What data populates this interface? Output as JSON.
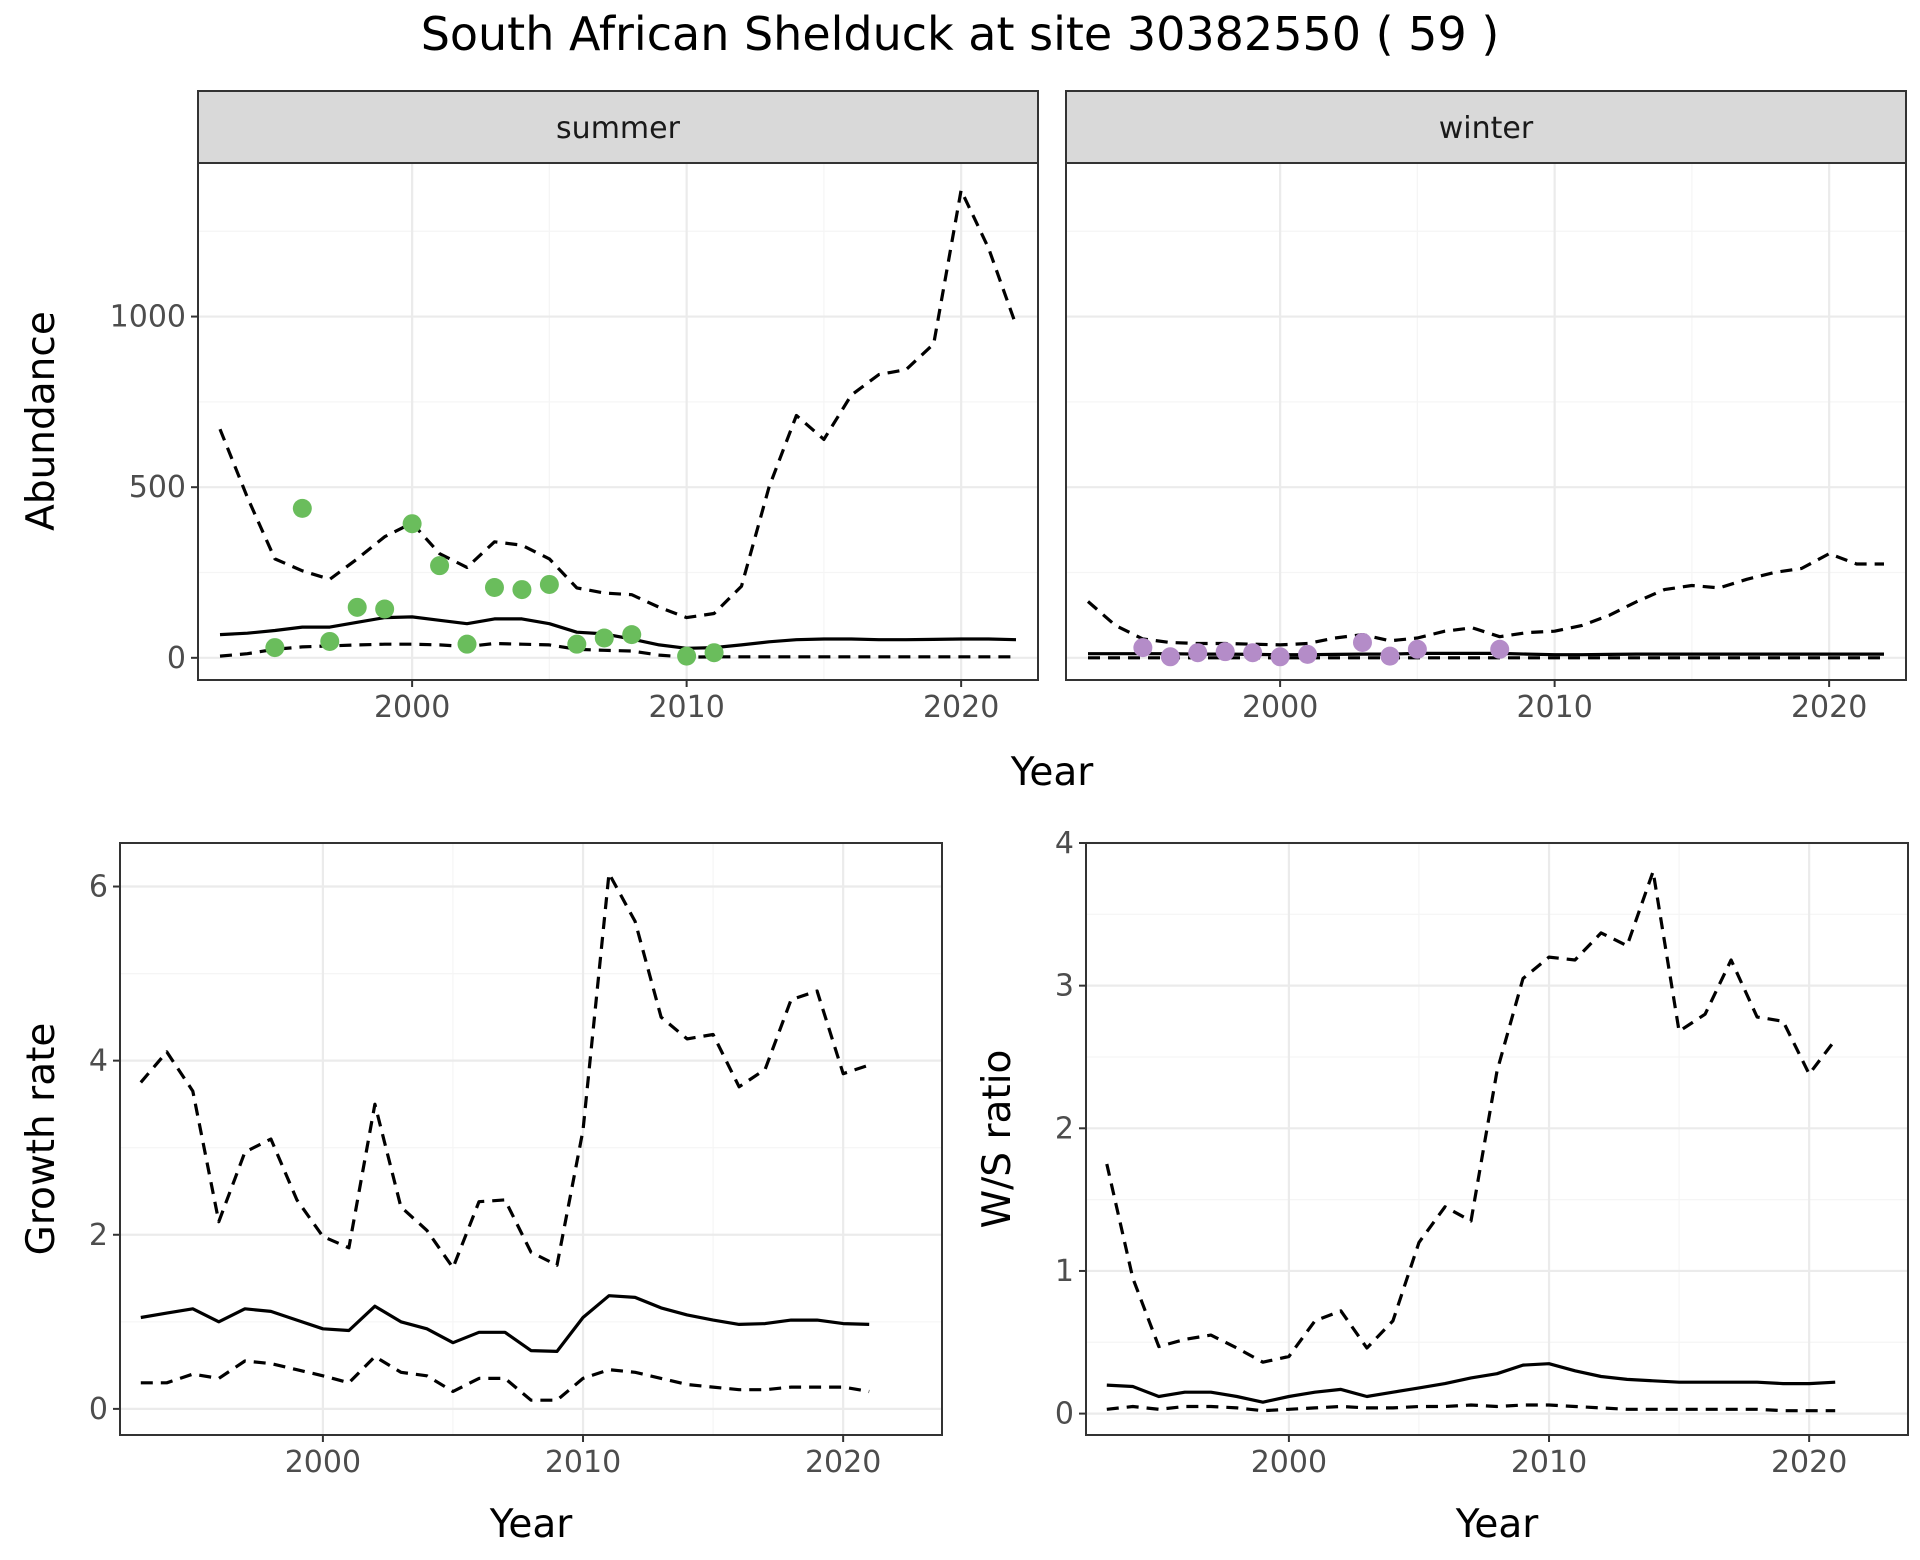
{
  "title": "South African Shelduck at site 30382550 ( 59 )",
  "colors": {
    "summer_points": "#6abd5c",
    "winter_points": "#b48cc8",
    "line": "#000000",
    "grid_major": "#ebebeb",
    "grid_minor": "#f5f5f5",
    "strip_fill": "#d9d9d9",
    "strip_border": "#333333",
    "panel_border": "#333333"
  },
  "chart_data": [
    {
      "name": "abundance",
      "type": "line",
      "ylabel": "Abundance",
      "xlabel": "Year",
      "xlim": [
        1992.2,
        2022.8
      ],
      "ylim": [
        -65,
        1450
      ],
      "x_ticks": [
        2000,
        2010,
        2020
      ],
      "y_ticks": [
        0,
        500,
        1000
      ],
      "grid": true,
      "legend": "none",
      "facets": [
        {
          "label": "summer",
          "fit": {
            "x": [
              1993,
              1994,
              1995,
              1996,
              1997,
              1998,
              1999,
              2000,
              2001,
              2002,
              2003,
              2004,
              2005,
              2006,
              2007,
              2008,
              2009,
              2010,
              2011,
              2012,
              2013,
              2014,
              2015,
              2016,
              2017,
              2018,
              2019,
              2020,
              2021,
              2022
            ],
            "mean": [
              68,
              72,
              80,
              90,
              90,
              104,
              118,
              120,
              110,
              100,
              114,
              114,
              100,
              75,
              70,
              55,
              38,
              28,
              30,
              38,
              47,
              53,
              55,
              55,
              53,
              53,
              54,
              55,
              55,
              53
            ],
            "lower": [
              5,
              12,
              25,
              32,
              35,
              38,
              40,
              40,
              38,
              33,
              42,
              40,
              38,
              25,
              22,
              20,
              8,
              2,
              3,
              3,
              3,
              3,
              3,
              3,
              3,
              3,
              3,
              3,
              3,
              3
            ],
            "upper": [
              670,
              470,
              290,
              255,
              230,
              290,
              355,
              395,
              305,
              265,
              340,
              330,
              290,
              205,
              190,
              185,
              148,
              118,
              130,
              210,
              500,
              710,
              640,
              770,
              830,
              845,
              920,
              1370,
              1200,
              975
            ]
          },
          "observed": {
            "x": [
              1995,
              1996,
              1997,
              1998,
              1999,
              2000,
              2001,
              2002,
              2003,
              2004,
              2005,
              2006,
              2007,
              2008,
              2010,
              2011
            ],
            "y": [
              30,
              438,
              48,
              148,
              143,
              393,
              270,
              40,
              206,
              200,
              215,
              40,
              58,
              68,
              5,
              15
            ]
          }
        },
        {
          "label": "winter",
          "fit": {
            "x": [
              1993,
              1994,
              1995,
              1996,
              1997,
              1998,
              1999,
              2000,
              2001,
              2002,
              2003,
              2004,
              2005,
              2006,
              2007,
              2008,
              2009,
              2010,
              2011,
              2012,
              2013,
              2014,
              2015,
              2016,
              2017,
              2018,
              2019,
              2020,
              2021,
              2022
            ],
            "mean": [
              12,
              12,
              12,
              12,
              11,
              11,
              10,
              9,
              9,
              10,
              11,
              11,
              13,
              13,
              13,
              13,
              11,
              9,
              9,
              10,
              11,
              11,
              11,
              11,
              11,
              11,
              11,
              11,
              11,
              11
            ],
            "lower": [
              0,
              0,
              0,
              0,
              0,
              0,
              0,
              0,
              0,
              0,
              0,
              0,
              0,
              0,
              0,
              0,
              0,
              0,
              0,
              0,
              0,
              0,
              0,
              0,
              0,
              0,
              0,
              0,
              0,
              0
            ],
            "upper": [
              165,
              95,
              55,
              45,
              42,
              42,
              40,
              38,
              42,
              58,
              68,
              50,
              58,
              78,
              88,
              62,
              74,
              78,
              95,
              125,
              165,
              200,
              212,
              205,
              230,
              250,
              262,
              305,
              275,
              275
            ]
          },
          "observed": {
            "x": [
              1995,
              1996,
              1997,
              1998,
              1999,
              2000,
              2001,
              2003,
              2004,
              2005,
              2008
            ],
            "y": [
              30,
              3,
              15,
              18,
              15,
              3,
              10,
              45,
              5,
              25,
              25
            ]
          }
        }
      ]
    },
    {
      "name": "growth-rate",
      "type": "line",
      "ylabel": "Growth rate",
      "xlabel": "Year",
      "xlim": [
        1992.2,
        2023.8
      ],
      "ylim": [
        -0.3,
        6.5
      ],
      "x_ticks": [
        2000,
        2010,
        2020
      ],
      "y_ticks": [
        0,
        2,
        4,
        6
      ],
      "grid": true,
      "legend": "none",
      "series": {
        "x": [
          1993,
          1994,
          1995,
          1996,
          1997,
          1998,
          1999,
          2000,
          2001,
          2002,
          2003,
          2004,
          2005,
          2006,
          2007,
          2008,
          2009,
          2010,
          2011,
          2012,
          2013,
          2014,
          2015,
          2016,
          2017,
          2018,
          2019,
          2020,
          2021
        ],
        "mean": [
          1.05,
          1.1,
          1.15,
          1.0,
          1.15,
          1.12,
          1.02,
          0.92,
          0.9,
          1.18,
          1.0,
          0.92,
          0.76,
          0.88,
          0.88,
          0.67,
          0.66,
          1.05,
          1.3,
          1.28,
          1.16,
          1.08,
          1.02,
          0.97,
          0.98,
          1.02,
          1.02,
          0.98,
          0.97
        ],
        "lower": [
          0.3,
          0.3,
          0.4,
          0.35,
          0.55,
          0.52,
          0.45,
          0.38,
          0.3,
          0.6,
          0.42,
          0.38,
          0.2,
          0.35,
          0.35,
          0.1,
          0.1,
          0.35,
          0.45,
          0.42,
          0.35,
          0.28,
          0.25,
          0.22,
          0.22,
          0.25,
          0.25,
          0.25,
          0.2
        ],
        "upper": [
          3.75,
          4.1,
          3.65,
          2.15,
          2.95,
          3.1,
          2.4,
          1.98,
          1.85,
          3.5,
          2.32,
          2.05,
          1.62,
          2.38,
          2.4,
          1.8,
          1.65,
          3.2,
          6.15,
          5.6,
          4.5,
          4.25,
          4.3,
          3.7,
          3.9,
          4.7,
          4.8,
          3.85,
          3.95
        ]
      }
    },
    {
      "name": "ws-ratio",
      "type": "line",
      "ylabel": "W/S ratio",
      "xlabel": "Year",
      "xlim": [
        1992.2,
        2023.8
      ],
      "ylim": [
        -0.15,
        4.0
      ],
      "x_ticks": [
        2000,
        2010,
        2020
      ],
      "y_ticks": [
        0,
        1,
        2,
        3,
        4
      ],
      "grid": true,
      "legend": "none",
      "series": {
        "x": [
          1993,
          1994,
          1995,
          1996,
          1997,
          1998,
          1999,
          2000,
          2001,
          2002,
          2003,
          2004,
          2005,
          2006,
          2007,
          2008,
          2009,
          2010,
          2011,
          2012,
          2013,
          2014,
          2015,
          2016,
          2017,
          2018,
          2019,
          2020,
          2021
        ],
        "mean": [
          0.2,
          0.19,
          0.12,
          0.15,
          0.15,
          0.12,
          0.08,
          0.12,
          0.15,
          0.17,
          0.12,
          0.15,
          0.18,
          0.21,
          0.25,
          0.28,
          0.34,
          0.35,
          0.3,
          0.26,
          0.24,
          0.23,
          0.22,
          0.22,
          0.22,
          0.22,
          0.21,
          0.21,
          0.22
        ],
        "lower": [
          0.03,
          0.05,
          0.03,
          0.05,
          0.05,
          0.04,
          0.02,
          0.03,
          0.04,
          0.05,
          0.04,
          0.04,
          0.05,
          0.05,
          0.06,
          0.05,
          0.06,
          0.06,
          0.05,
          0.04,
          0.03,
          0.03,
          0.03,
          0.03,
          0.03,
          0.03,
          0.02,
          0.02,
          0.02
        ],
        "upper": [
          1.75,
          0.95,
          0.47,
          0.52,
          0.55,
          0.46,
          0.36,
          0.4,
          0.65,
          0.72,
          0.46,
          0.65,
          1.2,
          1.45,
          1.35,
          2.4,
          3.05,
          3.2,
          3.18,
          3.37,
          3.28,
          3.8,
          2.68,
          2.8,
          3.18,
          2.78,
          2.75,
          2.38,
          2.62
        ]
      }
    }
  ]
}
